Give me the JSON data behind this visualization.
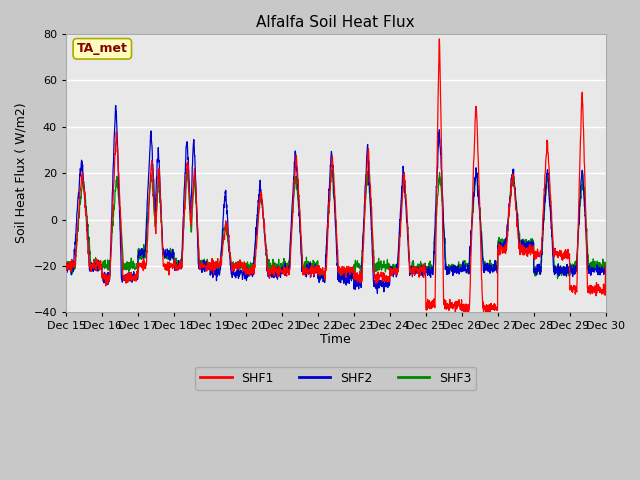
{
  "title": "Alfalfa Soil Heat Flux",
  "ylabel": "Soil Heat Flux ( W/m2)",
  "xlabel": "Time",
  "annotation": "TA_met",
  "ylim": [
    -40,
    80
  ],
  "yticks": [
    -40,
    -20,
    0,
    20,
    40,
    60,
    80
  ],
  "colors": {
    "SHF1": "#FF0000",
    "SHF2": "#0000CC",
    "SHF3": "#008800"
  },
  "fig_bg_color": "#C8C8C8",
  "ax_bg_color": "#E8E8E8",
  "annotation_box_color": "#FFFFBB",
  "annotation_text_color": "#880000",
  "annotation_edge_color": "#AAAA00",
  "grid_color": "#FFFFFF",
  "num_days": 15,
  "xtick_start": 15
}
